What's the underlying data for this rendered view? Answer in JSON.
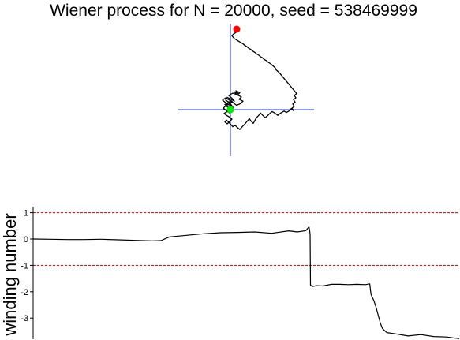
{
  "title": "Wiener process for N = 20000, seed = 538469999",
  "colors": {
    "path": "#000000",
    "crosshair": "#2233cc",
    "start_marker": "#00ee00",
    "end_marker": "#ff0000",
    "reference_lines": "#cc0000"
  },
  "chart_data": [
    {
      "type": "line",
      "name": "wiener-path-2d",
      "axes_visible": false,
      "crosshair_at_origin": true,
      "start_point_color": "green",
      "end_point_color": "red",
      "x": [
        0.0,
        -0.03,
        -0.05,
        0.02,
        -0.01,
        -0.06,
        -0.04,
        0.01,
        0.05,
        0.02,
        -0.02,
        0.03,
        0.08,
        0.05,
        0.1,
        0.07,
        0.12,
        0.09,
        0.14,
        0.11,
        0.16,
        0.13,
        0.08,
        0.04,
        0.01,
        -0.03,
        -0.07,
        -0.04,
        0.0,
        0.03,
        -0.01,
        -0.05,
        -0.09,
        -0.06,
        -0.02,
        0.02,
        -0.02,
        -0.06,
        -0.1,
        -0.07,
        -0.03,
        0.01,
        0.04,
        0.0,
        -0.04,
        -0.08,
        -0.05,
        -0.01,
        0.02,
        -0.01,
        -0.04,
        -0.07,
        -0.05,
        -0.02,
        0.01,
        0.03,
        0.06,
        0.09,
        0.12,
        0.15,
        0.18,
        0.21,
        0.24,
        0.26,
        0.29,
        0.31,
        0.33,
        0.36,
        0.38,
        0.41,
        0.44,
        0.47,
        0.5,
        0.53,
        0.57,
        0.6,
        0.64,
        0.68,
        0.71,
        0.75,
        0.77,
        0.8,
        0.78,
        0.81,
        0.79,
        0.82,
        0.8,
        0.83,
        0.81,
        0.84,
        0.82,
        0.8,
        0.78,
        0.76,
        0.74,
        0.72,
        0.7,
        0.68,
        0.66,
        0.64,
        0.62,
        0.6,
        0.58,
        0.57,
        0.55,
        0.53,
        0.51,
        0.48,
        0.46,
        0.43,
        0.41,
        0.38,
        0.36,
        0.33,
        0.31,
        0.28,
        0.26,
        0.23,
        0.21,
        0.18,
        0.16,
        0.13,
        0.11,
        0.09,
        0.07,
        0.05,
        0.04,
        0.03,
        0.02,
        0.03,
        0.04,
        0.05,
        0.06,
        0.07,
        0.06,
        0.05,
        0.06,
        0.07,
        0.08,
        0.07,
        0.08
      ],
      "y": [
        0.0,
        0.05,
        0.12,
        0.08,
        0.15,
        0.2,
        0.26,
        0.22,
        0.18,
        0.24,
        0.3,
        0.35,
        0.32,
        0.38,
        0.34,
        0.4,
        0.36,
        0.31,
        0.27,
        0.22,
        0.18,
        0.13,
        0.09,
        0.14,
        0.19,
        0.15,
        0.11,
        0.06,
        0.02,
        -0.03,
        -0.07,
        -0.02,
        0.03,
        0.08,
        0.12,
        0.16,
        0.21,
        0.25,
        0.2,
        0.16,
        0.12,
        0.08,
        0.04,
        0.0,
        -0.04,
        -0.08,
        -0.12,
        -0.16,
        -0.2,
        -0.25,
        -0.3,
        -0.26,
        -0.22,
        -0.27,
        -0.32,
        -0.36,
        -0.33,
        -0.38,
        -0.42,
        -0.36,
        -0.31,
        -0.25,
        -0.19,
        -0.24,
        -0.29,
        -0.23,
        -0.17,
        -0.12,
        -0.07,
        -0.12,
        -0.17,
        -0.13,
        -0.08,
        -0.04,
        -0.08,
        -0.12,
        -0.07,
        -0.03,
        -0.06,
        -0.02,
        0.02,
        -0.02,
        0.03,
        0.07,
        0.12,
        0.16,
        0.21,
        0.25,
        0.3,
        0.34,
        0.38,
        0.42,
        0.46,
        0.5,
        0.54,
        0.58,
        0.62,
        0.66,
        0.7,
        0.74,
        0.78,
        0.81,
        0.84,
        0.88,
        0.91,
        0.94,
        0.97,
        1.0,
        1.03,
        1.06,
        1.09,
        1.12,
        1.15,
        1.18,
        1.21,
        1.24,
        1.27,
        1.3,
        1.33,
        1.36,
        1.39,
        1.42,
        1.44,
        1.46,
        1.48,
        1.5,
        1.52,
        1.54,
        1.56,
        1.58,
        1.6,
        1.61,
        1.62,
        1.63,
        1.64,
        1.65,
        1.66,
        1.67,
        1.68,
        1.69,
        1.7
      ]
    },
    {
      "type": "line",
      "name": "winding-number",
      "xlabel": "",
      "ylabel": "winding number",
      "yticks": [
        1,
        0,
        -1,
        -2,
        -3
      ],
      "ylim": [
        -3.8,
        1.2
      ],
      "xlim": [
        0,
        20000
      ],
      "reference_lines": [
        1,
        -1
      ],
      "reference_line_style": "dashed",
      "grid": false,
      "x": [
        0,
        800,
        1600,
        2400,
        3200,
        4000,
        4800,
        5600,
        6000,
        6400,
        7200,
        8000,
        8800,
        9600,
        10400,
        11200,
        12000,
        12400,
        12800,
        12950,
        13000,
        13020,
        13100,
        13300,
        13600,
        14000,
        14400,
        14800,
        15200,
        15600,
        15800,
        15860,
        16000,
        16100,
        16200,
        16300,
        16400,
        16600,
        17000,
        17600,
        18200,
        18800,
        19400,
        20000
      ],
      "y": [
        0.0,
        -0.01,
        -0.02,
        -0.02,
        -0.01,
        -0.03,
        -0.05,
        -0.07,
        -0.06,
        0.08,
        0.14,
        0.2,
        0.24,
        0.25,
        0.27,
        0.22,
        0.31,
        0.27,
        0.32,
        0.46,
        0.2,
        -1.75,
        -1.8,
        -1.77,
        -1.78,
        -1.72,
        -1.72,
        -1.73,
        -1.72,
        -1.73,
        -1.7,
        -2.1,
        -2.35,
        -2.6,
        -2.9,
        -3.2,
        -3.4,
        -3.55,
        -3.6,
        -3.68,
        -3.63,
        -3.7,
        -3.72,
        -3.78
      ]
    }
  ]
}
